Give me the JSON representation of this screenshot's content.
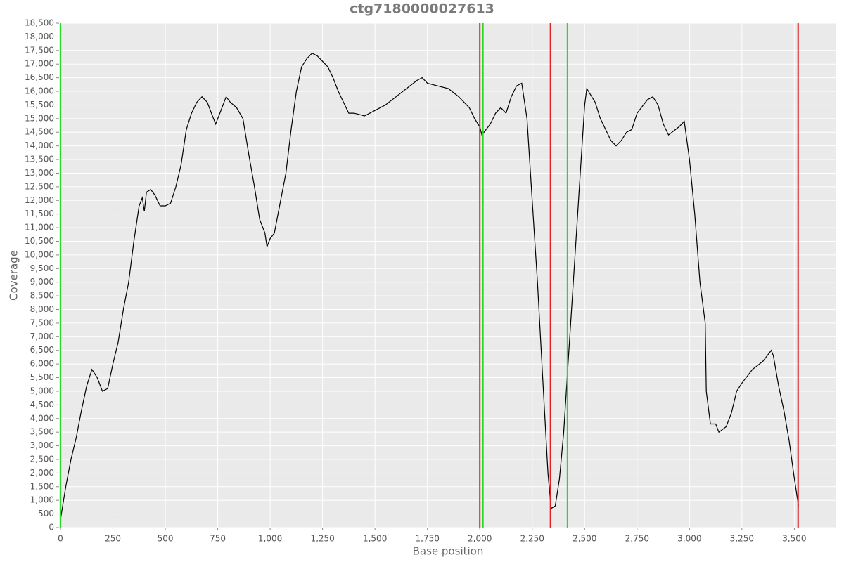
{
  "chart_data": {
    "type": "line",
    "title": "ctg7180000027613",
    "x_label": "Base position",
    "y_label": "Coverage",
    "color": "#000000",
    "grid": true,
    "plot_background": "#eaeaea",
    "grid_color": "#ffffff",
    "xlim": [
      0,
      3700
    ],
    "ylim": [
      0,
      18500
    ],
    "xticks": [
      0,
      250,
      500,
      750,
      {
        "value": 1000,
        "label": "1,000"
      },
      {
        "value": 1250,
        "label": "1,250"
      },
      {
        "value": 1500,
        "label": "1,500"
      },
      {
        "value": 1750,
        "label": "1,750"
      },
      {
        "value": 2000,
        "label": "2,000"
      },
      {
        "value": 2250,
        "label": "2,250"
      },
      {
        "value": 2500,
        "label": "2,500"
      },
      {
        "value": 2750,
        "label": "2,750"
      },
      {
        "value": 3000,
        "label": "3,000"
      },
      {
        "value": 3250,
        "label": "3,250"
      },
      {
        "value": 3500,
        "label": "3,500"
      }
    ],
    "yticks": [
      0,
      500,
      {
        "value": 1000,
        "label": "1,000"
      },
      {
        "value": 1500,
        "label": "1,500"
      },
      {
        "value": 2000,
        "label": "2,000"
      },
      {
        "value": 2500,
        "label": "2,500"
      },
      {
        "value": 3000,
        "label": "3,000"
      },
      {
        "value": 3500,
        "label": "3,500"
      },
      {
        "value": 4000,
        "label": "4,000"
      },
      {
        "value": 4500,
        "label": "4,500"
      },
      {
        "value": 5000,
        "label": "5,000"
      },
      {
        "value": 5500,
        "label": "5,500"
      },
      {
        "value": 6000,
        "label": "6,000"
      },
      {
        "value": 6500,
        "label": "6,500"
      },
      {
        "value": 7000,
        "label": "7,000"
      },
      {
        "value": 7500,
        "label": "7,500"
      },
      {
        "value": 8000,
        "label": "8,000"
      },
      {
        "value": 8500,
        "label": "8,500"
      },
      {
        "value": 9000,
        "label": "9,000"
      },
      {
        "value": 9500,
        "label": "9,500"
      },
      {
        "value": 10000,
        "label": "10,000"
      },
      {
        "value": 10500,
        "label": "10,500"
      },
      {
        "value": 11000,
        "label": "11,000"
      },
      {
        "value": 11500,
        "label": "11,500"
      },
      {
        "value": 12000,
        "label": "12,000"
      },
      {
        "value": 12500,
        "label": "12,500"
      },
      {
        "value": 13000,
        "label": "13,000"
      },
      {
        "value": 13500,
        "label": "13,500"
      },
      {
        "value": 14000,
        "label": "14,000"
      },
      {
        "value": 14500,
        "label": "14,500"
      },
      {
        "value": 15000,
        "label": "15,000"
      },
      {
        "value": 15500,
        "label": "15,500"
      },
      {
        "value": 16000,
        "label": "16,000"
      },
      {
        "value": 16500,
        "label": "16,500"
      },
      {
        "value": 17000,
        "label": "17,000"
      },
      {
        "value": 17500,
        "label": "17,500"
      },
      {
        "value": 18000,
        "label": "18,000"
      },
      {
        "value": 18500,
        "label": "18,500"
      }
    ],
    "vlines": [
      {
        "x": 0,
        "color": "#22dd22"
      },
      {
        "x": 2000,
        "color": "#e02020"
      },
      {
        "x": 2015,
        "color": "#22dd22"
      },
      {
        "x": 2337,
        "color": "#e02020"
      },
      {
        "x": 2418,
        "color": "#22dd22"
      },
      {
        "x": 3518,
        "color": "#e02020"
      }
    ],
    "x": [
      0,
      25,
      50,
      75,
      100,
      125,
      150,
      175,
      200,
      225,
      250,
      275,
      300,
      325,
      350,
      375,
      390,
      400,
      410,
      430,
      450,
      475,
      500,
      525,
      550,
      575,
      600,
      625,
      650,
      675,
      700,
      725,
      740,
      760,
      790,
      810,
      840,
      870,
      900,
      925,
      950,
      975,
      985,
      1000,
      1020,
      1050,
      1075,
      1100,
      1125,
      1150,
      1175,
      1200,
      1225,
      1250,
      1275,
      1300,
      1325,
      1350,
      1375,
      1400,
      1450,
      1500,
      1550,
      1600,
      1650,
      1700,
      1725,
      1750,
      1800,
      1850,
      1900,
      1950,
      1975,
      2000,
      2010,
      2050,
      2075,
      2100,
      2125,
      2150,
      2175,
      2200,
      2225,
      2250,
      2275,
      2300,
      2325,
      2340,
      2360,
      2380,
      2400,
      2425,
      2450,
      2475,
      2500,
      2510,
      2550,
      2575,
      2600,
      2625,
      2650,
      2675,
      2700,
      2725,
      2750,
      2800,
      2825,
      2850,
      2875,
      2900,
      2950,
      2975,
      3000,
      3025,
      3050,
      3075,
      3080,
      3100,
      3125,
      3140,
      3175,
      3200,
      3225,
      3250,
      3300,
      3350,
      3390,
      3400,
      3425,
      3450,
      3475,
      3500,
      3520
    ],
    "values": [
      300,
      1500,
      2500,
      3300,
      4300,
      5200,
      5800,
      5500,
      5000,
      5100,
      6000,
      6800,
      8000,
      9000,
      10500,
      11800,
      12100,
      11600,
      12300,
      12400,
      12200,
      11800,
      11800,
      11900,
      12500,
      13300,
      14600,
      15200,
      15600,
      15800,
      15600,
      15100,
      14800,
      15200,
      15800,
      15600,
      15400,
      15000,
      13600,
      12500,
      11300,
      10800,
      10300,
      10600,
      10800,
      12000,
      13000,
      14600,
      16000,
      16900,
      17200,
      17400,
      17300,
      17100,
      16900,
      16500,
      16000,
      15600,
      15200,
      15200,
      15100,
      15300,
      15500,
      15800,
      16100,
      16400,
      16500,
      16300,
      16200,
      16100,
      15800,
      15400,
      15000,
      14700,
      14400,
      14800,
      15200,
      15400,
      15200,
      15800,
      16200,
      16300,
      15000,
      12000,
      9000,
      5500,
      2000,
      700,
      800,
      1800,
      3500,
      6500,
      9500,
      12500,
      15500,
      16100,
      15600,
      15000,
      14600,
      14200,
      14000,
      14200,
      14500,
      14600,
      15200,
      15700,
      15800,
      15500,
      14800,
      14400,
      14700,
      14900,
      13500,
      11500,
      9000,
      7500,
      5000,
      3800,
      3800,
      3500,
      3700,
      4200,
      5000,
      5300,
      5800,
      6100,
      6500,
      6300,
      5200,
      4300,
      3200,
      1800,
      800
    ]
  }
}
